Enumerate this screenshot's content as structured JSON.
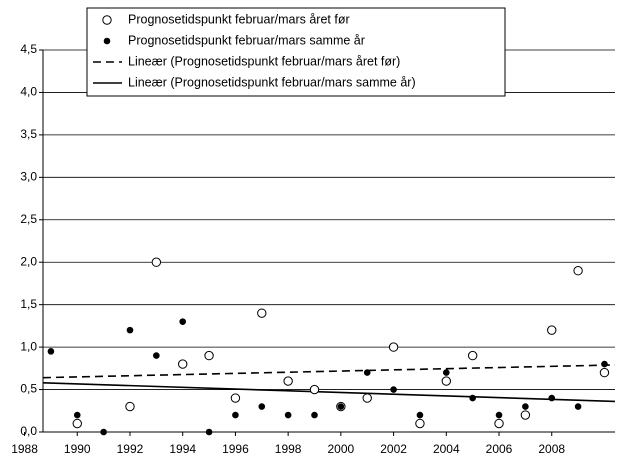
{
  "chart_data": {
    "type": "scatter",
    "x": [
      1989,
      1990,
      1991,
      1992,
      1993,
      1994,
      1995,
      1996,
      1997,
      1998,
      1999,
      2000,
      2001,
      2002,
      2003,
      2004,
      2005,
      2006,
      2007,
      2008,
      2009,
      2010
    ],
    "series": [
      {
        "name": "Prognosetidspunkt februar/mars året før",
        "marker": "open",
        "color": "#000000",
        "values": [
          null,
          0.1,
          null,
          0.3,
          2.0,
          0.8,
          0.9,
          0.4,
          1.4,
          0.6,
          0.5,
          0.3,
          0.4,
          1.0,
          0.1,
          0.6,
          0.9,
          0.1,
          0.2,
          1.2,
          1.9,
          0.7
        ]
      },
      {
        "name": "Prognosetidspunkt februar/mars samme år",
        "marker": "filled",
        "color": "#000000",
        "values": [
          0.95,
          0.2,
          0.0,
          1.2,
          0.9,
          1.3,
          0.0,
          0.2,
          0.3,
          0.2,
          0.2,
          0.3,
          0.7,
          0.5,
          0.2,
          0.7,
          0.4,
          0.2,
          0.3,
          0.4,
          0.3,
          0.8
        ]
      }
    ],
    "trendlines": [
      {
        "name": "Lineær (Prognosetidspunkt februar/mars året før)",
        "dash": true,
        "x": [
          1988.7,
          2010.4
        ],
        "values": [
          0.64,
          0.79
        ]
      },
      {
        "name": "Lineær (Prognosetidspunkt februar/mars samme år)",
        "dash": false,
        "x": [
          1988.7,
          2010.4
        ],
        "values": [
          0.58,
          0.36
        ]
      }
    ],
    "xlim": [
      1988.7,
      2010.4
    ],
    "xticks": [
      1988,
      1990,
      1992,
      1994,
      1996,
      1998,
      2000,
      2002,
      2004,
      2006,
      2008
    ],
    "ylim": [
      0,
      4.5
    ],
    "yticks": [
      {
        "value": 0,
        "label": "0,0"
      },
      {
        "value": 0.5,
        "label": "0,5"
      },
      {
        "value": 1,
        "label": "1,0"
      },
      {
        "value": 1.5,
        "label": "1,5"
      },
      {
        "value": 2,
        "label": "2,0"
      },
      {
        "value": 2.5,
        "label": "2,5"
      },
      {
        "value": 3,
        "label": "3,0"
      },
      {
        "value": 3.5,
        "label": "3,5"
      },
      {
        "value": 4,
        "label": "4,0"
      },
      {
        "value": 4.5,
        "label": "4,5"
      }
    ],
    "grid": true
  }
}
